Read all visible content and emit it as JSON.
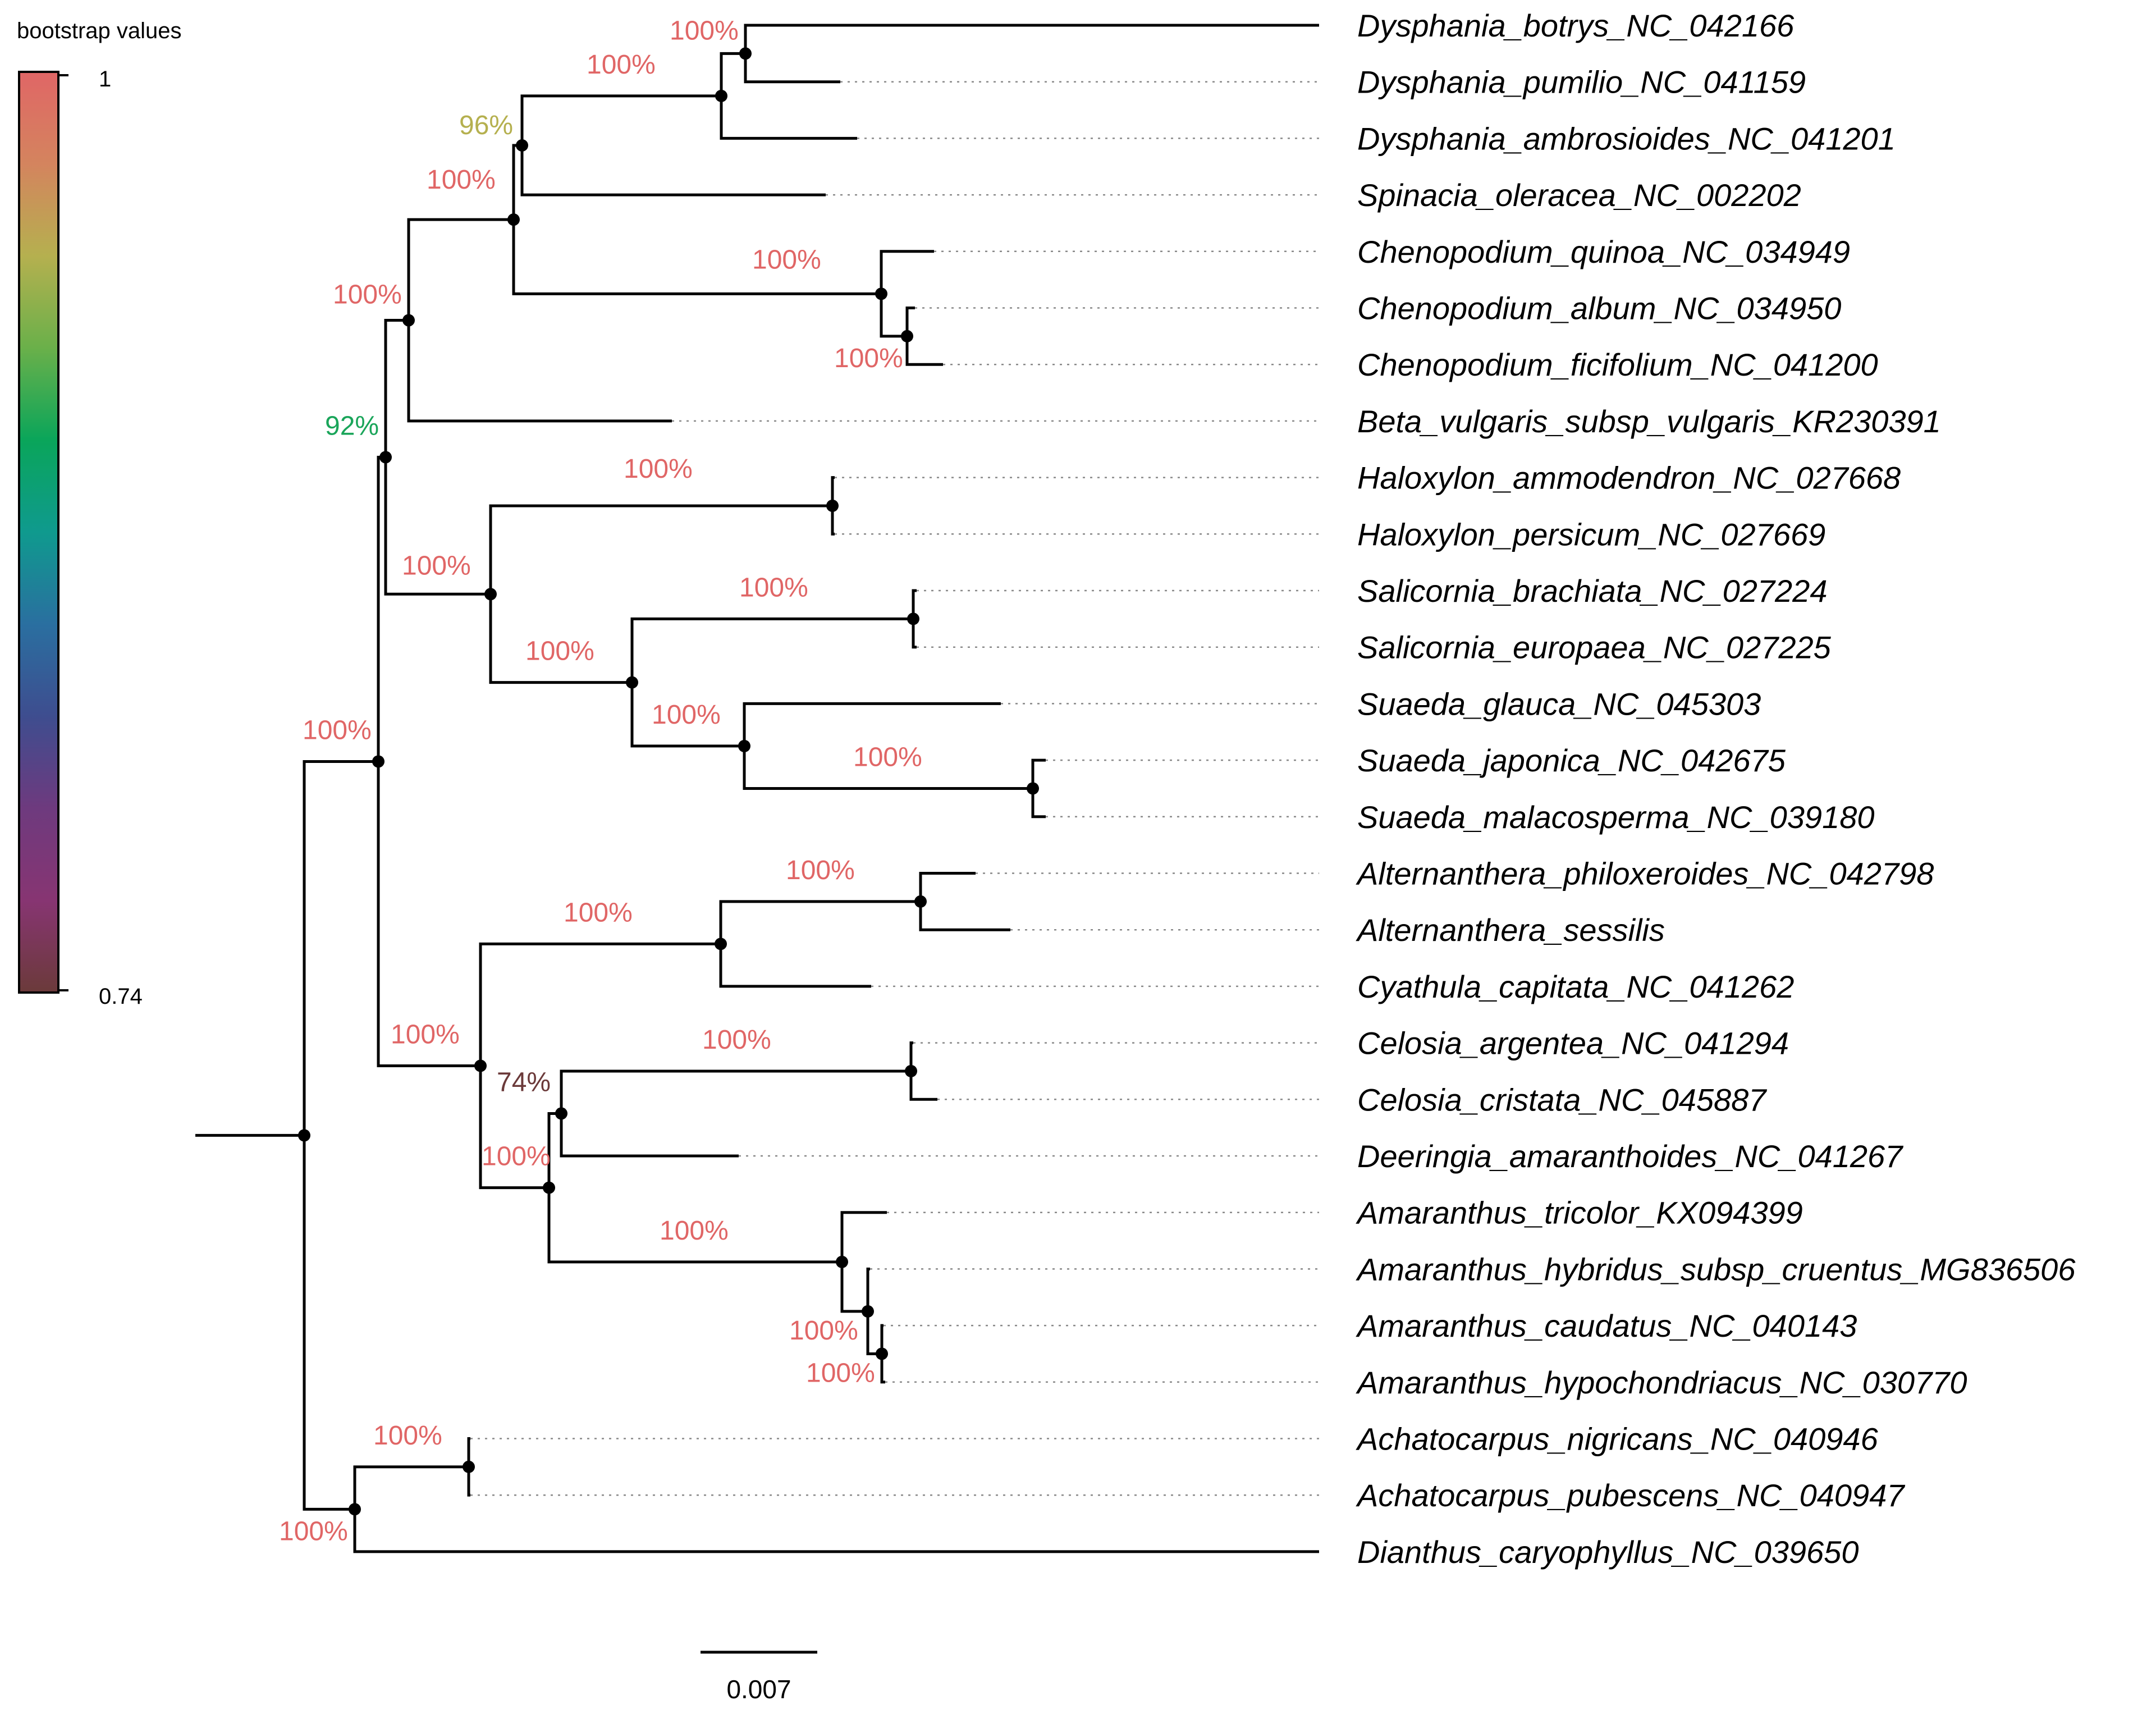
{
  "legend": {
    "title": "bootstrap values",
    "max_label": "1",
    "min_label": "0.74",
    "gradient_colors": [
      "#e06666",
      "#d4845e",
      "#b5b04f",
      "#6ab04a",
      "#0aa55a",
      "#0f9a8e",
      "#2a6fa0",
      "#3e4d8f",
      "#6e3a7e",
      "#873572",
      "#6b3a3a"
    ]
  },
  "scale_bar": {
    "label": "0.007",
    "branch_length": 0.007
  },
  "colors": {
    "support_100": "#e06666",
    "support_96": "#b5b04f",
    "support_92": "#1aa55a",
    "support_74": "#6b3a3a",
    "branch": "#000000",
    "tip_guide": "#888888"
  },
  "tips": [
    "Dysphania_botrys_NC_042166",
    "Dysphania_pumilio_NC_041159",
    "Dysphania_ambrosioides_NC_041201",
    "Spinacia_oleracea_NC_002202",
    "Chenopodium_quinoa_NC_034949",
    "Chenopodium_album_NC_034950",
    "Chenopodium_ficifolium_NC_041200",
    "Beta_vulgaris_subsp_vulgaris_KR230391",
    "Haloxylon_ammodendron_NC_027668",
    "Haloxylon_persicum_NC_027669",
    "Salicornia_brachiata_NC_027224",
    "Salicornia_europaea_NC_027225",
    "Suaeda_glauca_NC_045303",
    "Suaeda_japonica_NC_042675",
    "Suaeda_malacosperma_NC_039180",
    "Alternanthera_philoxeroides_NC_042798",
    "Alternanthera_sessilis",
    "Cyathula_capitata_NC_041262",
    "Celosia_argentea_NC_041294",
    "Celosia_cristata_NC_045887",
    "Deeringia_amaranthoides_NC_041267",
    "Amaranthus_tricolor_KX094399",
    "Amaranthus_hybridus_subsp_cruentus_MG836506",
    "Amaranthus_caudatus_NC_040143",
    "Amaranthus_hypochondriacus_NC_030770",
    "Achatocarpus_nigricans_NC_040946",
    "Achatocarpus_pubescens_NC_040947",
    "Dianthus_caryophyllus_NC_039650"
  ],
  "support_labels": [
    "100%",
    "100%",
    "96%",
    "100%",
    "100%",
    "100%",
    "100%",
    "92%",
    "100%",
    "100%",
    "100%",
    "100%",
    "100%",
    "100%",
    "100%",
    "100%",
    "100%",
    "100%",
    "100%",
    "74%",
    "100%",
    "100%",
    "100%",
    "100%",
    "100%",
    "100%"
  ]
}
